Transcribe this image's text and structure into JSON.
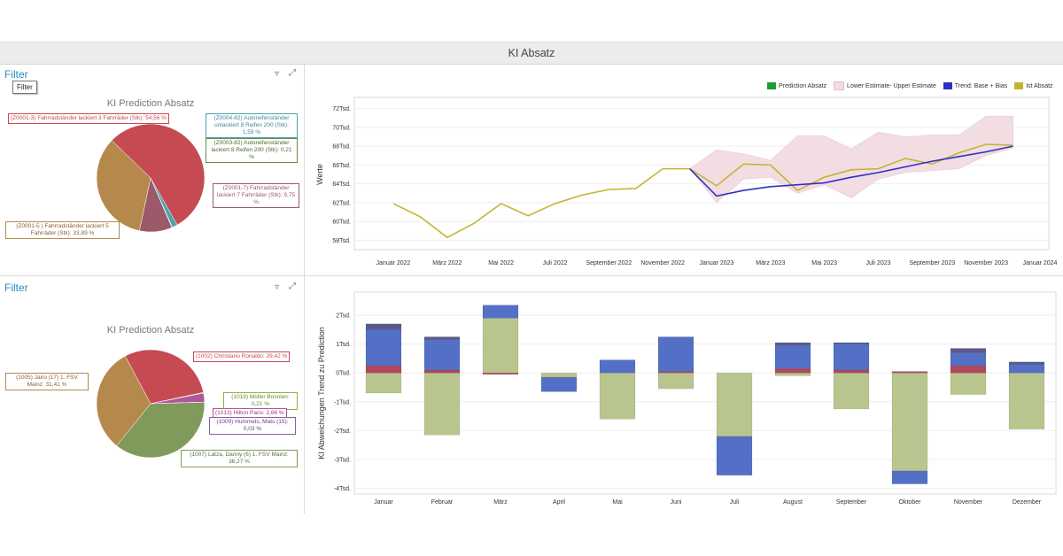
{
  "page": {
    "title": "KI Absatz"
  },
  "top_left": {
    "filter_title": "Filter",
    "filter_button": "Filter",
    "pie_title": "KI Prediction Absatz",
    "slices": [
      {
        "label": "(Z0001-3) Fahrradständer lackiert 3 Fahrräder (Stk): 54,56 %",
        "value": 54.56,
        "color": "#c64a52"
      },
      {
        "label": "(Z0004-82) Autoreifenständer unlackiert 8 Reifen 200 (Stk): 1,59 %",
        "value": 1.59,
        "color": "#4aa3b0"
      },
      {
        "label": "(Z0003-82) Autoreifenständer lackiert 8 Reifen 200 (Stk): 0,21 %",
        "value": 0.21,
        "color": "#6a8a4a"
      },
      {
        "label": "(Z0001-7) Fahrradständer lackiert 7 Fahrräder (Stk): 9,75 %",
        "value": 9.75,
        "color": "#9a5a6a"
      },
      {
        "label": "(Z0001-5 ) Fahrradständer lackiert 5 Fahrräder (Stk): 33,89 %",
        "value": 33.89,
        "color": "#b5894b"
      }
    ]
  },
  "bottom_left": {
    "filter_title": "Filter",
    "pie_title": "KI Prediction Absatz",
    "slices": [
      {
        "label": "(1002) Christiano Ronaldo: 29,42 %",
        "value": 29.42,
        "color": "#c64a52"
      },
      {
        "label": "(1019) Müller Bosnien: 0,21 %",
        "value": 0.21,
        "color": "#8fb04a"
      },
      {
        "label": "(1013) Hilton Paris: 2,66 %",
        "value": 2.66,
        "color": "#b0569a"
      },
      {
        "label": "(1009) Hummels, Mats (15): 0,03 %",
        "value": 0.03,
        "color": "#8a5fa0"
      },
      {
        "label": "(1007) Latza, Danny (6) 1. FSV Mainz: 36,27 %",
        "value": 36.27,
        "color": "#7f9a5a"
      },
      {
        "label": "(1005) Jairo (17) 1. FSV Mainz: 31,41 %",
        "value": 31.41,
        "color": "#b5894b"
      }
    ]
  },
  "chart_data": [
    {
      "type": "line",
      "title": "",
      "ylabel": "Werte",
      "ylim": [
        57000,
        73000
      ],
      "y_ticks": [
        "58Tsd.",
        "60Tsd.",
        "62Tsd.",
        "64Tsd.",
        "66Tsd.",
        "68Tsd.",
        "70Tsd.",
        "72Tsd."
      ],
      "x_ticks": [
        "Januar 2022",
        "März 2022",
        "Mai 2022",
        "Juli 2022",
        "September 2022",
        "November 2022",
        "Januar 2023",
        "März 2023",
        "Mai 2023",
        "Juli 2023",
        "September 2023",
        "November 2023",
        "Januar 2024"
      ],
      "legend": [
        "Prediction Absatz",
        "Lower Estimate- Upper Estimate",
        "Trend: Base + Bias",
        "Ist Absatz"
      ],
      "colors": {
        "prediction": "#1aa032",
        "band": "#f2dde2",
        "trend": "#2f2fc8",
        "ist": "#c2b535"
      },
      "ist_absatz": [
        61900,
        60500,
        58300,
        59800,
        61900,
        60600,
        61900,
        62800,
        63400,
        63500,
        65600,
        65600
      ],
      "prediction": [
        65600,
        63800,
        66100,
        66000,
        63300,
        64700,
        65500,
        65600,
        66700,
        66100,
        67300,
        68200,
        68100
      ],
      "trend": [
        65600,
        62700,
        63300,
        63700,
        63900,
        64100,
        64700,
        65200,
        65800,
        66400,
        66900,
        67400,
        68000
      ],
      "lower": [
        65600,
        62000,
        64500,
        64700,
        63000,
        63900,
        62500,
        64500,
        65200,
        65400,
        65600,
        67000,
        67800
      ],
      "upper": [
        65600,
        67600,
        67200,
        66500,
        69100,
        69100,
        67700,
        69500,
        69000,
        69200,
        69200,
        71200,
        71200
      ]
    },
    {
      "type": "bar",
      "title": "",
      "ylabel": "KI Abweichungen Trend zu Prediction",
      "ylim": [
        -4200,
        2800
      ],
      "y_ticks": [
        "2Tsd.",
        "1Tsd.",
        "0Tsd.",
        "-1Tsd.",
        "-2Tsd.",
        "-3Tsd.",
        "-4Tsd."
      ],
      "categories": [
        "Januar",
        "Februar",
        "März",
        "April",
        "Mai",
        "Juni",
        "Juli",
        "August",
        "September",
        "Oktober",
        "November",
        "Dezember"
      ],
      "series": [
        {
          "name": "",
          "color": "#b9c58e",
          "values": [
            -700,
            -2150,
            1900,
            -150,
            -1600,
            -550,
            -2200,
            -100,
            -1250,
            -3400,
            -750,
            -1950
          ]
        },
        {
          "name": "",
          "color": "#b0485a",
          "values": [
            250,
            100,
            -50,
            0,
            0,
            50,
            0,
            150,
            100,
            50,
            250,
            0
          ]
        },
        {
          "name": "",
          "color": "#5470c6",
          "values": [
            1250,
            1050,
            450,
            -500,
            450,
            1200,
            -1350,
            800,
            900,
            -450,
            450,
            300
          ]
        },
        {
          "name": "",
          "color": "#5a5a8a",
          "values": [
            200,
            100,
            0,
            0,
            0,
            0,
            0,
            100,
            50,
            0,
            150,
            80
          ]
        }
      ]
    }
  ]
}
